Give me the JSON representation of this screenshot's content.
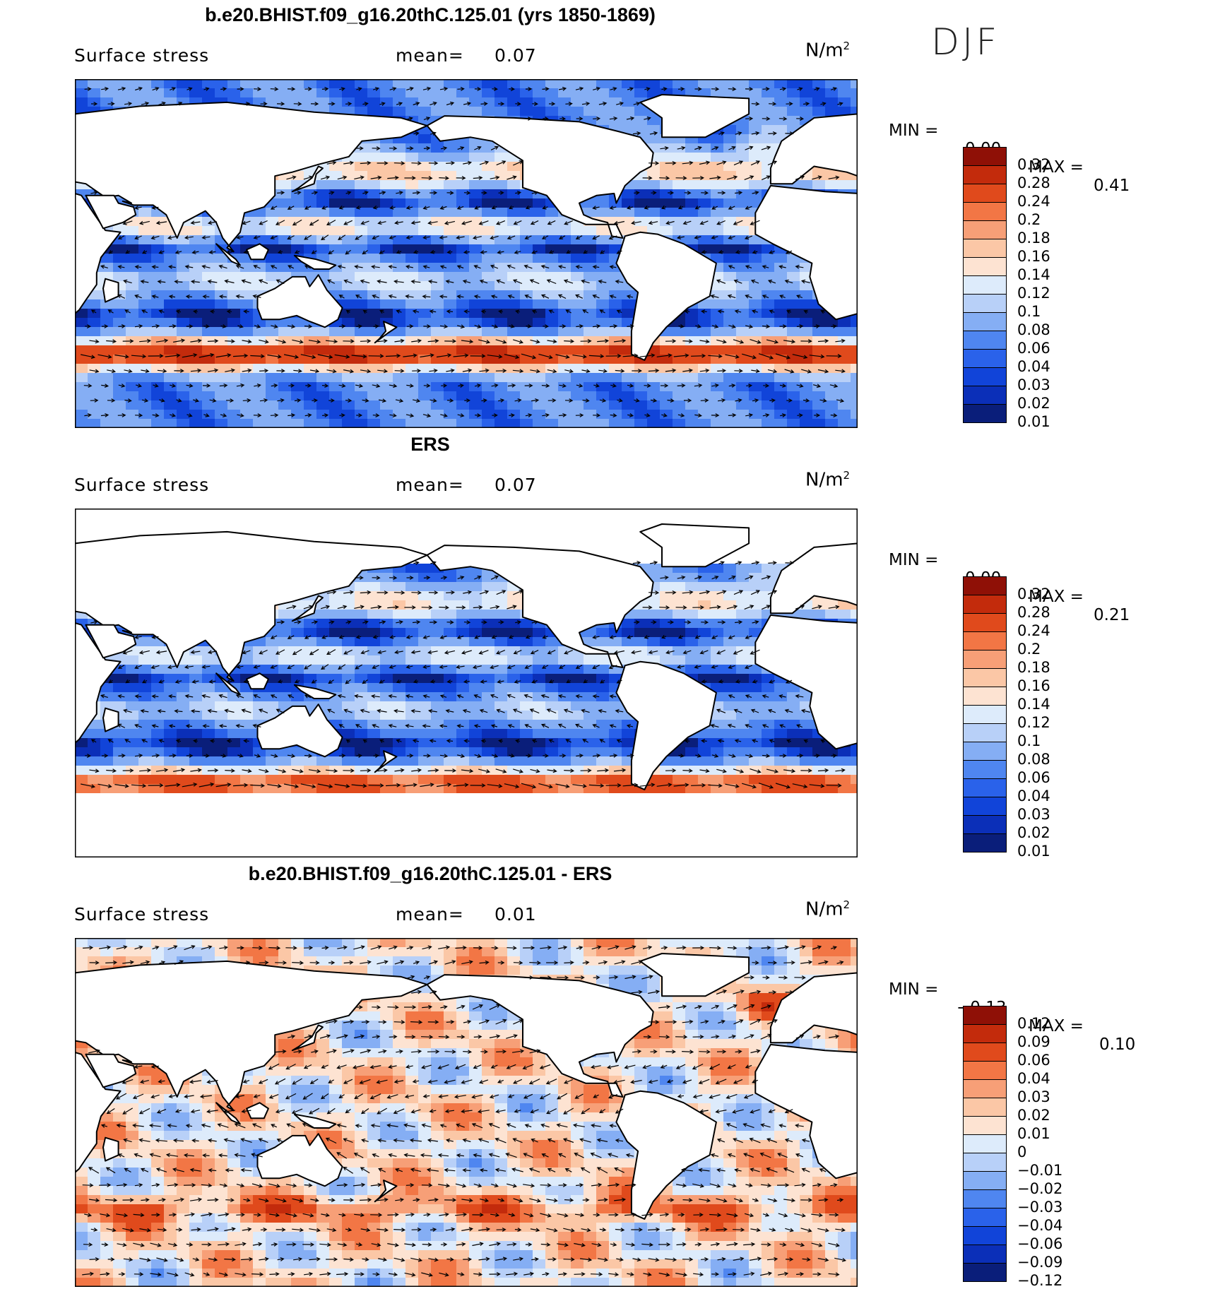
{
  "season": "DJF",
  "colors": {
    "land": "#ffffff",
    "coast": "#000000",
    "arrow": "#000000"
  },
  "palettes": {
    "abs": [
      "#0a1e7a",
      "#0b2fb8",
      "#1144d9",
      "#2a62ea",
      "#4f86f0",
      "#85aef4",
      "#b8d0f8",
      "#ddebfb",
      "#fde3d2",
      "#fbc7a6",
      "#f79f77",
      "#f27645",
      "#e04a1c",
      "#c32b0c",
      "#8f1006"
    ],
    "diff": [
      "#0a1e7a",
      "#0b2fb8",
      "#1144d9",
      "#2a62ea",
      "#4f86f0",
      "#85aef4",
      "#b8d0f8",
      "#ddebfb",
      "#fde3d2",
      "#fbc7a6",
      "#f79f77",
      "#f27645",
      "#e04a1c",
      "#c32b0c",
      "#8f1006"
    ]
  },
  "panels": [
    {
      "title": "b.e20.BHIST.f09_g16.20thC.125.01 (yrs 1850-1869)",
      "variable": "Surface stress",
      "mean_label": "mean=",
      "mean_value": "0.07",
      "units": "N/m",
      "units_exp": "2",
      "min_label": "MIN =",
      "min_value": "0.00",
      "max_label": "MAX =",
      "max_value": "0.41",
      "levels": [
        "0.32",
        "0.28",
        "0.24",
        "0.2",
        "0.18",
        "0.16",
        "0.14",
        "0.12",
        "0.1",
        "0.08",
        "0.06",
        "0.04",
        "0.03",
        "0.02",
        "0.01"
      ]
    },
    {
      "title": "ERS",
      "variable": "Surface stress",
      "mean_label": "mean=",
      "mean_value": "0.07",
      "units": "N/m",
      "units_exp": "2",
      "min_label": "MIN =",
      "min_value": "0.00",
      "max_label": "MAX =",
      "max_value": "0.21",
      "levels": [
        "0.32",
        "0.28",
        "0.24",
        "0.2",
        "0.18",
        "0.16",
        "0.14",
        "0.12",
        "0.1",
        "0.08",
        "0.06",
        "0.04",
        "0.03",
        "0.02",
        "0.01"
      ]
    },
    {
      "title": "b.e20.BHIST.f09_g16.20thC.125.01 - ERS",
      "variable": "Surface stress",
      "mean_label": "mean=",
      "mean_value": "0.01",
      "units": "N/m",
      "units_exp": "2",
      "min_label": "MIN =",
      "min_value": "−0.13",
      "max_label": "MAX =",
      "max_value": "0.10",
      "levels": [
        "0.12",
        "0.09",
        "0.06",
        "0.04",
        "0.03",
        "0.02",
        "0.01",
        "0",
        "−0.01",
        "−0.02",
        "−0.03",
        "−0.04",
        "−0.06",
        "−0.09",
        "−0.12"
      ]
    }
  ]
}
